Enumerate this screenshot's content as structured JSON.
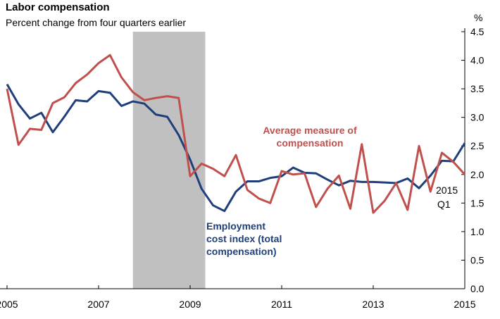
{
  "chart_data": {
    "type": "line",
    "title": "Labor compensation",
    "subtitle": "Percent change from four quarters earlier",
    "y_unit": "%",
    "x": [
      2005,
      2005.25,
      2005.5,
      2005.75,
      2006,
      2006.25,
      2006.5,
      2006.75,
      2007,
      2007.25,
      2007.5,
      2007.75,
      2008,
      2008.25,
      2008.5,
      2008.75,
      2009,
      2009.25,
      2009.5,
      2009.75,
      2010,
      2010.25,
      2010.5,
      2010.75,
      2011,
      2011.25,
      2011.5,
      2011.75,
      2012,
      2012.25,
      2012.5,
      2012.75,
      2013,
      2013.25,
      2013.5,
      2013.75,
      2014,
      2014.25,
      2014.5,
      2014.75,
      2015
    ],
    "series": [
      {
        "name": [
          "Employment",
          "cost index (total",
          "compensation)"
        ],
        "color": "#1f3f7a",
        "values": [
          3.58,
          3.23,
          2.98,
          3.08,
          2.74,
          3.01,
          3.3,
          3.28,
          3.46,
          3.43,
          3.2,
          3.28,
          3.24,
          3.05,
          3.01,
          2.69,
          2.26,
          1.75,
          1.46,
          1.36,
          1.7,
          1.88,
          1.88,
          1.94,
          1.97,
          2.12,
          2.03,
          2.02,
          1.91,
          1.81,
          1.89,
          1.87,
          1.87,
          1.86,
          1.85,
          1.93,
          1.76,
          1.98,
          2.24,
          2.23,
          2.55
        ]
      },
      {
        "name": [
          "Average measure of",
          "compensation"
        ],
        "color": "#c0504d",
        "values": [
          3.5,
          2.52,
          2.8,
          2.78,
          3.25,
          3.35,
          3.6,
          3.75,
          3.95,
          4.09,
          3.7,
          3.44,
          3.3,
          3.34,
          3.37,
          3.34,
          1.97,
          2.19,
          2.1,
          1.97,
          2.34,
          1.73,
          1.58,
          1.5,
          2.06,
          2.0,
          2.02,
          1.43,
          1.75,
          1.98,
          1.4,
          2.53,
          1.33,
          1.54,
          1.85,
          1.38,
          2.5,
          1.7,
          2.38,
          2.22,
          2.0
        ]
      }
    ],
    "recession": [
      2007.75,
      2009.33
    ],
    "recession_color": "#c0c0c0",
    "annotation": [
      "2015",
      "Q1"
    ],
    "xlim": [
      2005,
      2015
    ],
    "xticks": [
      2005,
      2007,
      2009,
      2011,
      2013,
      2015
    ],
    "ylim": [
      0,
      4.5
    ],
    "yticks": [
      {
        "value": 0,
        "label": "0.0"
      },
      {
        "value": 0.5,
        "label": "0.5"
      },
      {
        "value": 1,
        "label": "1.0"
      },
      {
        "value": 1.5,
        "label": "1.5"
      },
      {
        "value": 2,
        "label": "2.0"
      },
      {
        "value": 2.5,
        "label": "2.5"
      },
      {
        "value": 3,
        "label": "3.0"
      },
      {
        "value": 3.5,
        "label": "3.5"
      },
      {
        "value": 4,
        "label": "4.0"
      },
      {
        "value": 4.5,
        "label": "4.5"
      }
    ],
    "y_axis_side": "right"
  }
}
